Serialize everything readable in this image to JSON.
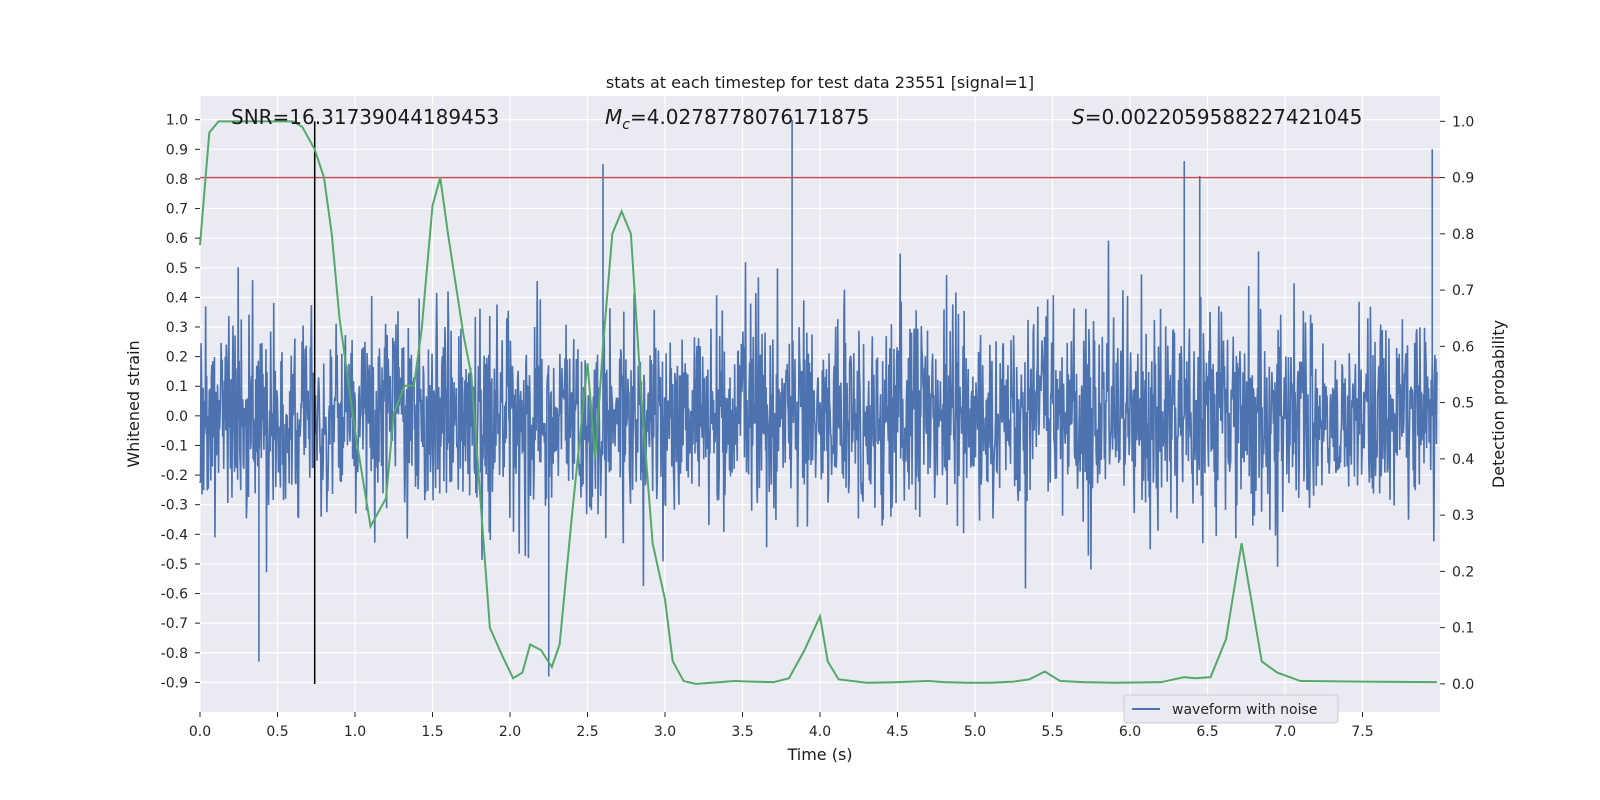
{
  "chart_data": {
    "type": "line",
    "title": "stats at each timestep for test data 23551 [signal=1]",
    "xlabel": "Time (s)",
    "ylabel": "Whitened strain",
    "ylabel_right": "Detection probability",
    "xlim": [
      0.0,
      8.0
    ],
    "ylim": [
      -1.0,
      1.08
    ],
    "ylim_right": [
      -0.05,
      1.045
    ],
    "x_ticks": [
      "0.0",
      "0.5",
      "1.0",
      "1.5",
      "2.0",
      "2.5",
      "3.0",
      "3.5",
      "4.0",
      "4.5",
      "5.0",
      "5.5",
      "6.0",
      "6.5",
      "7.0",
      "7.5"
    ],
    "y_ticks": [
      "1.0",
      "0.9",
      "0.8",
      "0.7",
      "0.6",
      "0.5",
      "0.4",
      "0.3",
      "0.2",
      "0.1",
      "0.0",
      "-0.1",
      "-0.2",
      "-0.3",
      "-0.4",
      "-0.5",
      "-0.6",
      "-0.7",
      "-0.8",
      "-0.9"
    ],
    "y_ticks_right": [
      "1.0",
      "0.9",
      "0.8",
      "0.7",
      "0.6",
      "0.5",
      "0.4",
      "0.3",
      "0.2",
      "0.1",
      "0.0"
    ],
    "annotations": {
      "snr": "SNR=16.31739044189453",
      "mc_symbol": "M",
      "mc_sub": "c",
      "mc_value": "=4.0278778076171875",
      "s_symbol": "S",
      "s_value": "=0.0022059588227421045"
    },
    "threshold": {
      "value_right": 0.9,
      "color": "#c44e52"
    },
    "marker_time": 0.74,
    "legend": {
      "entry": "waveform with noise",
      "location": "lower-right"
    },
    "colors": {
      "waveform": "#4c72b0",
      "probability": "#55a868",
      "background": "#eaeaf2",
      "grid": "#ffffff",
      "marker": "#000000"
    },
    "waveform": {
      "name": "waveform with noise",
      "note": "dense whitened strain noise, amplitude approx ±0.3 with spikes to ±0.7",
      "peaks": [
        [
          0.38,
          -0.83
        ],
        [
          2.25,
          -0.88
        ],
        [
          2.6,
          0.85
        ],
        [
          3.82,
          1.0
        ],
        [
          6.35,
          0.86
        ],
        [
          6.45,
          0.81
        ],
        [
          7.95,
          0.9
        ]
      ]
    },
    "series": [
      {
        "name": "detection probability",
        "x": [
          0.0,
          0.06,
          0.12,
          0.2,
          0.3,
          0.4,
          0.5,
          0.6,
          0.66,
          0.74,
          0.8,
          0.85,
          0.9,
          1.0,
          1.1,
          1.2,
          1.25,
          1.32,
          1.38,
          1.43,
          1.5,
          1.55,
          1.6,
          1.7,
          1.75,
          1.87,
          1.95,
          2.02,
          2.08,
          2.13,
          2.2,
          2.27,
          2.32,
          2.4,
          2.5,
          2.55,
          2.6,
          2.66,
          2.72,
          2.78,
          2.85,
          2.92,
          3.0,
          3.05,
          3.12,
          3.2,
          3.3,
          3.45,
          3.55,
          3.7,
          3.8,
          3.9,
          4.0,
          4.05,
          4.12,
          4.3,
          4.5,
          4.7,
          4.8,
          4.95,
          5.1,
          5.25,
          5.35,
          5.45,
          5.55,
          5.7,
          5.9,
          6.2,
          6.35,
          6.42,
          6.52,
          6.62,
          6.72,
          6.85,
          6.95,
          7.1,
          7.5,
          7.98
        ],
        "y": [
          0.78,
          0.98,
          1.0,
          1.0,
          1.0,
          1.0,
          1.0,
          1.0,
          0.99,
          0.95,
          0.9,
          0.8,
          0.65,
          0.45,
          0.28,
          0.33,
          0.48,
          0.53,
          0.53,
          0.63,
          0.85,
          0.9,
          0.8,
          0.62,
          0.55,
          0.1,
          0.05,
          0.01,
          0.02,
          0.07,
          0.06,
          0.03,
          0.07,
          0.3,
          0.57,
          0.4,
          0.6,
          0.8,
          0.84,
          0.8,
          0.5,
          0.25,
          0.15,
          0.04,
          0.005,
          0.0,
          0.002,
          0.005,
          0.004,
          0.003,
          0.01,
          0.06,
          0.12,
          0.04,
          0.008,
          0.002,
          0.003,
          0.005,
          0.003,
          0.002,
          0.002,
          0.004,
          0.008,
          0.022,
          0.005,
          0.003,
          0.002,
          0.003,
          0.012,
          0.01,
          0.012,
          0.08,
          0.25,
          0.04,
          0.02,
          0.005,
          0.004,
          0.003
        ]
      }
    ]
  }
}
